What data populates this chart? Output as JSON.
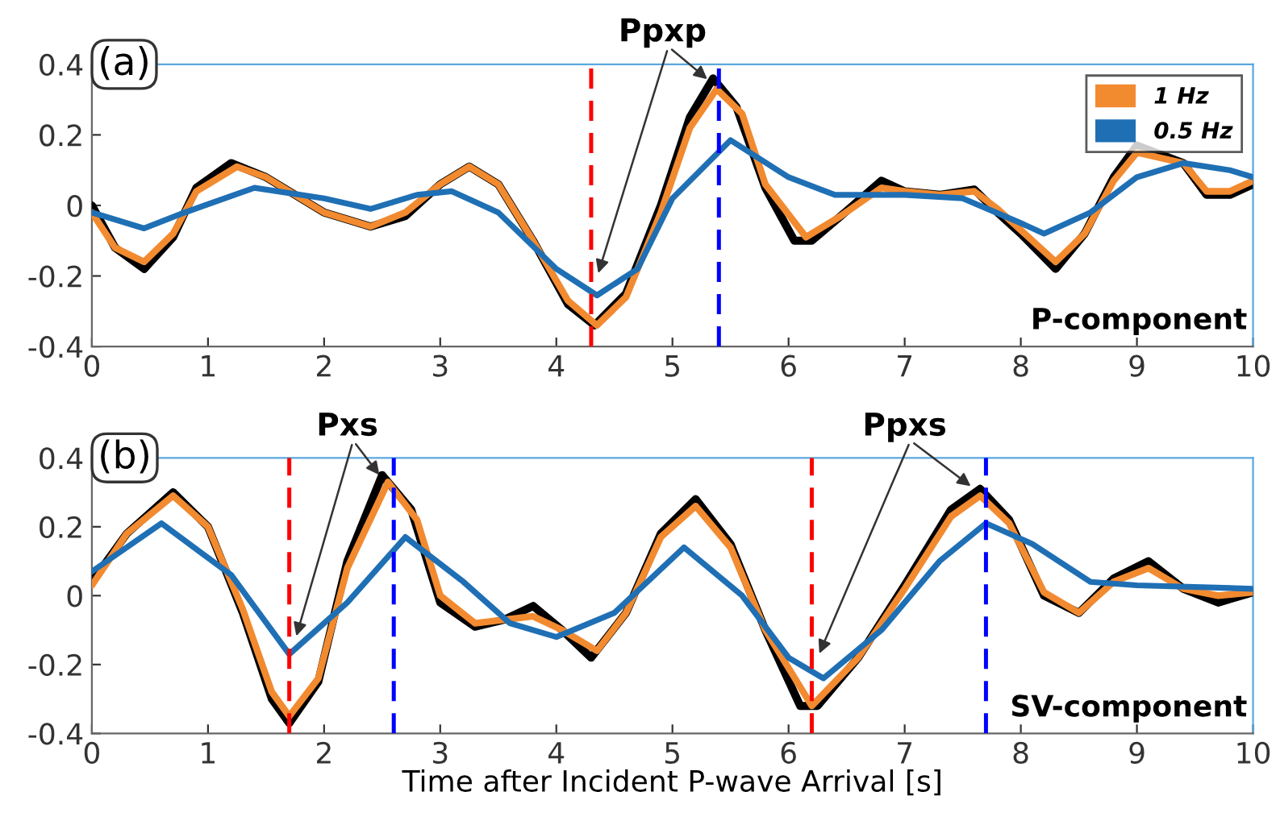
{
  "chart_data": [
    {
      "type": "line",
      "xlim": [
        0,
        10
      ],
      "ylim": [
        -0.4,
        0.4
      ],
      "xticks": [
        0,
        1,
        2,
        3,
        4,
        5,
        6,
        7,
        8,
        9,
        10
      ],
      "yticks": [
        -0.4,
        -0.2,
        0,
        0.2,
        0.4
      ],
      "grid": false,
      "legend": "top right",
      "line_style": "solid",
      "marker": "none",
      "annotations": [
        "(a)",
        "P-component",
        {
          "text": "Ppxp",
          "x": 5.33,
          "y": 0.35
        }
      ],
      "ref_lines": [
        {
          "axis": "x",
          "value": 4.3,
          "color": "#ff0000",
          "line_style": "dashed"
        },
        {
          "axis": "x",
          "value": 5.4,
          "color": "#0000ff",
          "line_style": "dashed"
        }
      ],
      "series": [
        {
          "color": "#000000",
          "x": [
            0,
            0.2,
            0.45,
            0.7,
            0.9,
            1.2,
            1.5,
            2.0,
            2.4,
            2.7,
            3.0,
            3.25,
            3.5,
            3.8,
            4.1,
            4.33,
            4.6,
            4.9,
            5.15,
            5.35,
            5.55,
            5.8,
            6.05,
            6.2,
            6.45,
            6.8,
            7.0,
            7.3,
            7.6,
            7.8,
            8.0,
            8.3,
            8.55,
            8.8,
            9.0,
            9.4,
            9.6,
            9.8,
            10
          ],
          "values": [
            0,
            -0.12,
            -0.18,
            -0.09,
            0.05,
            0.12,
            0.08,
            -0.02,
            -0.06,
            -0.03,
            0.06,
            0.11,
            0.06,
            -0.1,
            -0.28,
            -0.34,
            -0.25,
            0,
            0.25,
            0.36,
            0.28,
            0.05,
            -0.1,
            -0.1,
            -0.03,
            0.07,
            0.04,
            0.03,
            0.045,
            -0.02,
            -0.08,
            -0.18,
            -0.08,
            0.08,
            0.17,
            0.12,
            0.03,
            0.03,
            0.06
          ]
        },
        {
          "name": "1 Hz",
          "color": "#f28a30",
          "x": [
            0,
            0.2,
            0.45,
            0.7,
            0.9,
            1.25,
            1.5,
            2.0,
            2.4,
            2.7,
            3.0,
            3.25,
            3.5,
            3.8,
            4.1,
            4.35,
            4.6,
            4.9,
            5.15,
            5.38,
            5.6,
            5.8,
            6.15,
            6.45,
            6.8,
            7.0,
            7.3,
            7.6,
            7.8,
            8.0,
            8.3,
            8.55,
            8.8,
            9.0,
            9.4,
            9.6,
            9.8,
            10
          ],
          "values": [
            -0.02,
            -0.12,
            -0.16,
            -0.08,
            0.04,
            0.11,
            0.08,
            -0.02,
            -0.06,
            -0.02,
            0.06,
            0.11,
            0.06,
            -0.1,
            -0.27,
            -0.34,
            -0.26,
            -0.02,
            0.22,
            0.33,
            0.26,
            0.06,
            -0.09,
            -0.03,
            0.05,
            0.04,
            0.03,
            0.04,
            -0.01,
            -0.07,
            -0.16,
            -0.08,
            0.07,
            0.15,
            0.12,
            0.04,
            0.04,
            0.07
          ]
        },
        {
          "name": "0.5 Hz",
          "color": "#1f6fb4",
          "x": [
            0,
            0.45,
            0.8,
            1.4,
            2.0,
            2.4,
            2.8,
            3.1,
            3.5,
            4.0,
            4.35,
            4.7,
            5.0,
            5.5,
            6.0,
            6.4,
            7.0,
            7.5,
            8.0,
            8.2,
            8.6,
            9.0,
            9.4,
            9.8,
            10
          ],
          "values": [
            -0.02,
            -0.065,
            -0.02,
            0.05,
            0.02,
            -0.01,
            0.03,
            0.04,
            -0.02,
            -0.18,
            -0.255,
            -0.18,
            0.02,
            0.185,
            0.08,
            0.03,
            0.03,
            0.02,
            -0.05,
            -0.08,
            -0.02,
            0.08,
            0.12,
            0.1,
            0.08
          ]
        }
      ]
    },
    {
      "type": "line",
      "xlim": [
        0,
        10
      ],
      "ylim": [
        -0.4,
        0.4
      ],
      "xticks": [
        0,
        1,
        2,
        3,
        4,
        5,
        6,
        7,
        8,
        9,
        10
      ],
      "yticks": [
        -0.4,
        -0.2,
        0,
        0.2,
        0.4
      ],
      "grid": false,
      "line_style": "solid",
      "marker": "none",
      "xlabel": "Time after Incident P-wave Arrival [s]",
      "annotations": [
        "(b)",
        "SV-component",
        {
          "text": "Pxs",
          "x": 2.5,
          "y": 0.34
        },
        {
          "text": "Ppxs",
          "x": 7.6,
          "y": 0.31
        }
      ],
      "ref_lines": [
        {
          "axis": "x",
          "value": 1.7,
          "color": "#ff0000",
          "line_style": "dashed"
        },
        {
          "axis": "x",
          "value": 2.6,
          "color": "#0000ff",
          "line_style": "dashed"
        },
        {
          "axis": "x",
          "value": 6.2,
          "color": "#ff0000",
          "line_style": "dashed"
        },
        {
          "axis": "x",
          "value": 7.7,
          "color": "#0000ff",
          "line_style": "dashed"
        }
      ],
      "series": [
        {
          "color": "#000000",
          "x": [
            0,
            0.3,
            0.7,
            1.0,
            1.3,
            1.55,
            1.7,
            1.95,
            2.2,
            2.5,
            2.75,
            3.0,
            3.3,
            3.55,
            3.8,
            4.05,
            4.3,
            4.6,
            4.9,
            5.2,
            5.5,
            5.8,
            6.1,
            6.25,
            6.6,
            7.0,
            7.4,
            7.65,
            7.9,
            8.2,
            8.5,
            8.8,
            9.1,
            9.4,
            9.7,
            10
          ],
          "values": [
            0.04,
            0.18,
            0.3,
            0.2,
            -0.05,
            -0.3,
            -0.37,
            -0.25,
            0.1,
            0.35,
            0.25,
            -0.02,
            -0.09,
            -0.07,
            -0.03,
            -0.1,
            -0.18,
            -0.05,
            0.18,
            0.28,
            0.15,
            -0.1,
            -0.32,
            -0.32,
            -0.18,
            0.03,
            0.25,
            0.31,
            0.22,
            0,
            -0.05,
            0.05,
            0.1,
            0.02,
            -0.02,
            0.01
          ]
        },
        {
          "color": "#f28a30",
          "x": [
            0,
            0.3,
            0.7,
            1.0,
            1.3,
            1.55,
            1.7,
            1.95,
            2.2,
            2.55,
            2.8,
            3.0,
            3.3,
            3.8,
            4.05,
            4.35,
            4.6,
            4.9,
            5.2,
            5.5,
            5.8,
            6.2,
            6.6,
            7.0,
            7.4,
            7.65,
            7.9,
            8.2,
            8.5,
            8.8,
            9.1,
            9.4,
            9.7,
            10
          ],
          "values": [
            0.03,
            0.18,
            0.29,
            0.2,
            -0.04,
            -0.28,
            -0.35,
            -0.24,
            0.08,
            0.33,
            0.22,
            0,
            -0.08,
            -0.06,
            -0.1,
            -0.16,
            -0.05,
            0.17,
            0.26,
            0.14,
            -0.1,
            -0.32,
            -0.18,
            0.02,
            0.23,
            0.29,
            0.21,
            0.01,
            -0.05,
            0.04,
            0.08,
            0.02,
            0,
            0.01
          ]
        },
        {
          "color": "#1f6fb4",
          "x": [
            0,
            0.6,
            1.2,
            1.7,
            2.2,
            2.7,
            3.2,
            3.6,
            4.0,
            4.5,
            5.1,
            5.6,
            6.0,
            6.3,
            6.8,
            7.3,
            7.7,
            8.1,
            8.6,
            9.0,
            10
          ],
          "values": [
            0.07,
            0.21,
            0.06,
            -0.17,
            -0.02,
            0.17,
            0.04,
            -0.08,
            -0.12,
            -0.05,
            0.14,
            0,
            -0.18,
            -0.24,
            -0.1,
            0.1,
            0.21,
            0.15,
            0.04,
            0.03,
            0.02
          ]
        }
      ]
    }
  ]
}
